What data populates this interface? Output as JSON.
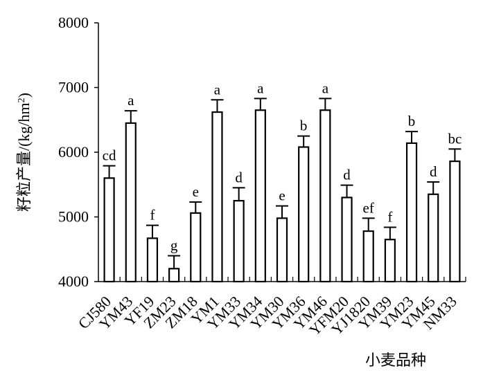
{
  "chart_data": {
    "type": "bar",
    "xlabel": "小麦品种",
    "ylabel": "籽粒产量/(kg/hm²)",
    "ylim": [
      4000,
      8000
    ],
    "yticks": [
      "4000",
      "5000",
      "6000",
      "7000",
      "8000"
    ],
    "grid": false,
    "categories": [
      "CJ580",
      "YM43",
      "YF19",
      "ZM23",
      "ZM18",
      "YM1",
      "YM33",
      "YM34",
      "YM30",
      "YM36",
      "YM46",
      "YFM20",
      "YJ1820",
      "YM39",
      "YM23",
      "YM45",
      "NM33"
    ],
    "values": [
      5600,
      6450,
      4670,
      4200,
      5060,
      6620,
      5250,
      6650,
      4980,
      6080,
      6650,
      5300,
      4780,
      4650,
      6140,
      5350,
      5860
    ],
    "errors": [
      190,
      190,
      200,
      200,
      170,
      190,
      200,
      180,
      190,
      170,
      180,
      190,
      200,
      190,
      180,
      190,
      190
    ],
    "letters": [
      "cd",
      "a",
      "f",
      "g",
      "e",
      "a",
      "d",
      "a",
      "e",
      "b",
      "a",
      "d",
      "ef",
      "f",
      "b",
      "d",
      "bc"
    ]
  }
}
